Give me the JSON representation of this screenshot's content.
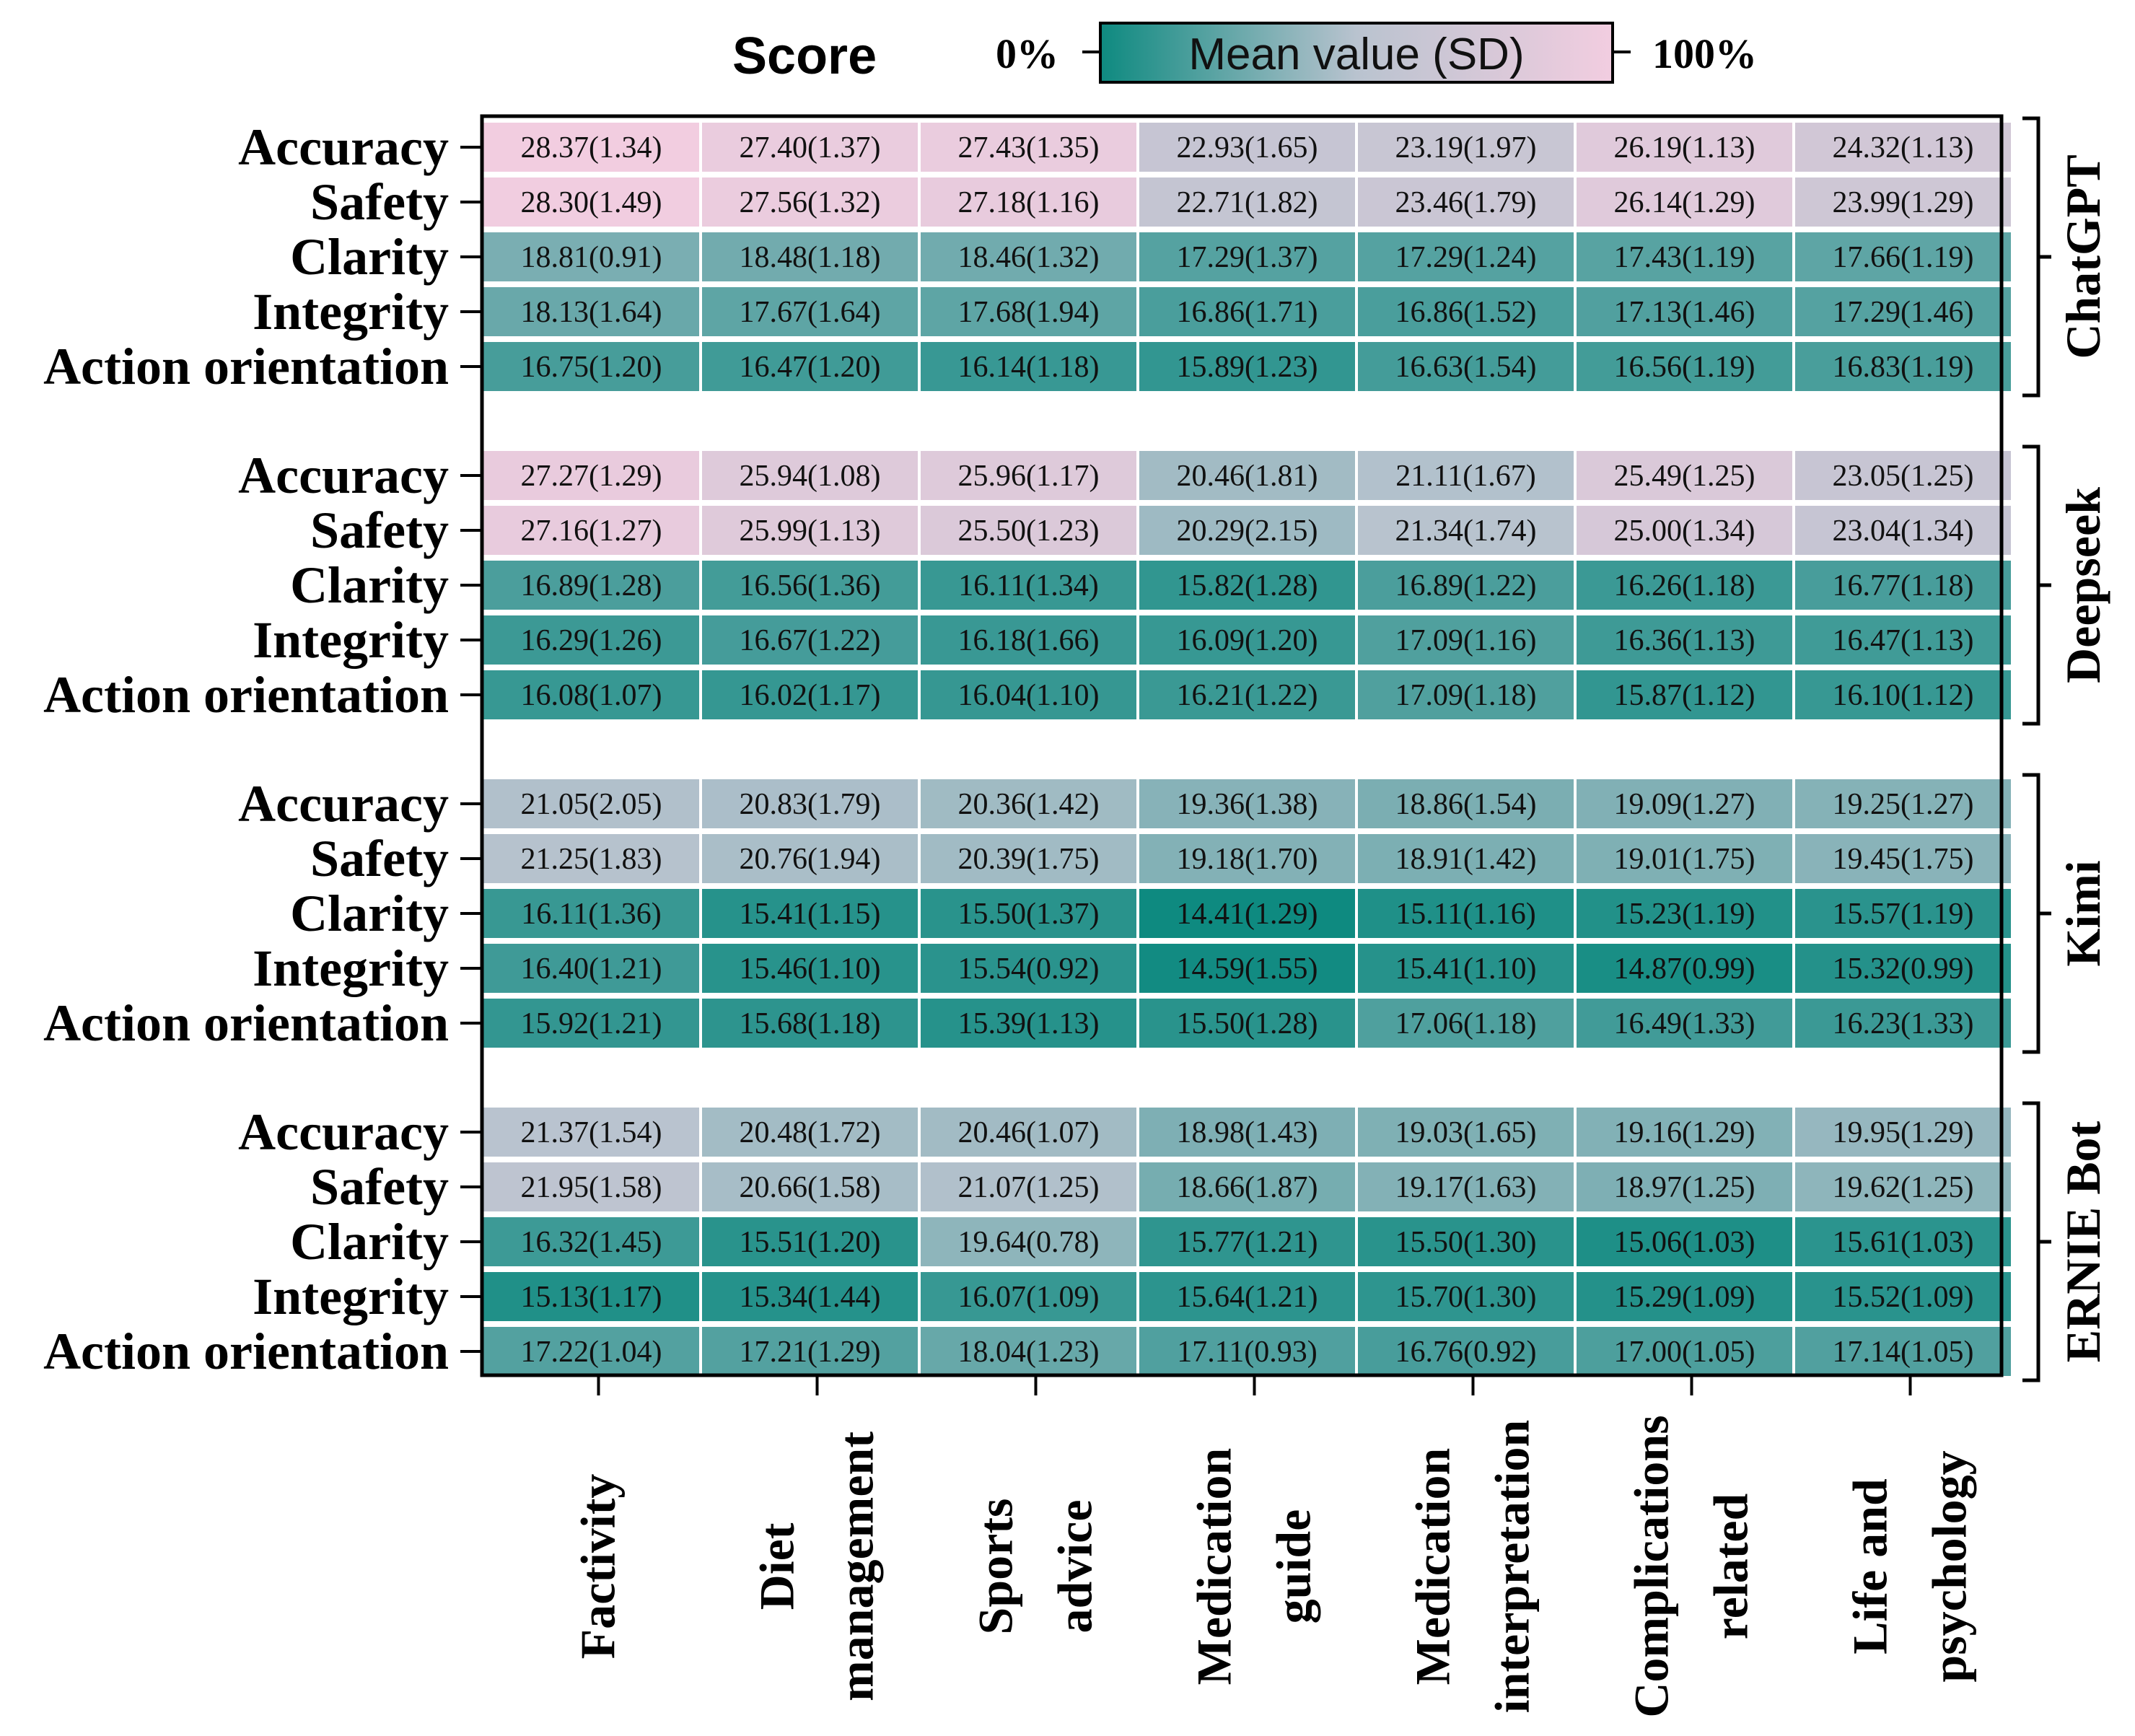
{
  "chart_data": {
    "type": "heatmap",
    "title": "Score",
    "colorbar": {
      "low_label": "0%",
      "high_label": "100%",
      "label": "Mean value (SD)",
      "low_color": "#0e8a80",
      "mid_color": "#b9c3cf",
      "high_color": "#f2cde0"
    },
    "columns": [
      [
        "Factivity"
      ],
      [
        "Diet",
        "management"
      ],
      [
        "Sports",
        "advice"
      ],
      [
        "Medication",
        "guide"
      ],
      [
        "Medication",
        "interpretation"
      ],
      [
        "Complications",
        "related"
      ],
      [
        "Life and",
        "psychology"
      ]
    ],
    "groups": [
      {
        "name": "ChatGPT",
        "rows": [
          {
            "label": "Accuracy",
            "cells": [
              "28.37(1.34)",
              "27.40(1.37)",
              "27.43(1.35)",
              "22.93(1.65)",
              "23.19(1.97)",
              "26.19(1.13)",
              "24.32(1.13)"
            ],
            "means": [
              28.37,
              27.4,
              27.43,
              22.93,
              23.19,
              26.19,
              24.32
            ]
          },
          {
            "label": "Safety",
            "cells": [
              "28.30(1.49)",
              "27.56(1.32)",
              "27.18(1.16)",
              "22.71(1.82)",
              "23.46(1.79)",
              "26.14(1.29)",
              "23.99(1.29)"
            ],
            "means": [
              28.3,
              27.56,
              27.18,
              22.71,
              23.46,
              26.14,
              23.99
            ]
          },
          {
            "label": "Clarity",
            "cells": [
              "18.81(0.91)",
              "18.48(1.18)",
              "18.46(1.32)",
              "17.29(1.37)",
              "17.29(1.24)",
              "17.43(1.19)",
              "17.66(1.19)"
            ],
            "means": [
              18.81,
              18.48,
              18.46,
              17.29,
              17.29,
              17.43,
              17.66
            ]
          },
          {
            "label": "Integrity",
            "cells": [
              "18.13(1.64)",
              "17.67(1.64)",
              "17.68(1.94)",
              "16.86(1.71)",
              "16.86(1.52)",
              "17.13(1.46)",
              "17.29(1.46)"
            ],
            "means": [
              18.13,
              17.67,
              17.68,
              16.86,
              16.86,
              17.13,
              17.29
            ]
          },
          {
            "label": "Action orientation",
            "cells": [
              "16.75(1.20)",
              "16.47(1.20)",
              "16.14(1.18)",
              "15.89(1.23)",
              "16.63(1.54)",
              "16.56(1.19)",
              "16.83(1.19)"
            ],
            "means": [
              16.75,
              16.47,
              16.14,
              15.89,
              16.63,
              16.56,
              16.83
            ]
          }
        ]
      },
      {
        "name": "Deepseek",
        "rows": [
          {
            "label": "Accuracy",
            "cells": [
              "27.27(1.29)",
              "25.94(1.08)",
              "25.96(1.17)",
              "20.46(1.81)",
              "21.11(1.67)",
              "25.49(1.25)",
              "23.05(1.25)"
            ],
            "means": [
              27.27,
              25.94,
              25.96,
              20.46,
              21.11,
              25.49,
              23.05
            ]
          },
          {
            "label": "Safety",
            "cells": [
              "27.16(1.27)",
              "25.99(1.13)",
              "25.50(1.23)",
              "20.29(2.15)",
              "21.34(1.74)",
              "25.00(1.34)",
              "23.04(1.34)"
            ],
            "means": [
              27.16,
              25.99,
              25.5,
              20.29,
              21.34,
              25.0,
              23.04
            ]
          },
          {
            "label": "Clarity",
            "cells": [
              "16.89(1.28)",
              "16.56(1.36)",
              "16.11(1.34)",
              "15.82(1.28)",
              "16.89(1.22)",
              "16.26(1.18)",
              "16.77(1.18)"
            ],
            "means": [
              16.89,
              16.56,
              16.11,
              15.82,
              16.89,
              16.26,
              16.77
            ]
          },
          {
            "label": "Integrity",
            "cells": [
              "16.29(1.26)",
              "16.67(1.22)",
              "16.18(1.66)",
              "16.09(1.20)",
              "17.09(1.16)",
              "16.36(1.13)",
              "16.47(1.13)"
            ],
            "means": [
              16.29,
              16.67,
              16.18,
              16.09,
              17.09,
              16.36,
              16.47
            ]
          },
          {
            "label": "Action orientation",
            "cells": [
              "16.08(1.07)",
              "16.02(1.17)",
              "16.04(1.10)",
              "16.21(1.22)",
              "17.09(1.18)",
              "15.87(1.12)",
              "16.10(1.12)"
            ],
            "means": [
              16.08,
              16.02,
              16.04,
              16.21,
              17.09,
              15.87,
              16.1
            ]
          }
        ]
      },
      {
        "name": "Kimi",
        "rows": [
          {
            "label": "Accuracy",
            "cells": [
              "21.05(2.05)",
              "20.83(1.79)",
              "20.36(1.42)",
              "19.36(1.38)",
              "18.86(1.54)",
              "19.09(1.27)",
              "19.25(1.27)"
            ],
            "means": [
              21.05,
              20.83,
              20.36,
              19.36,
              18.86,
              19.09,
              19.25
            ]
          },
          {
            "label": "Safety",
            "cells": [
              "21.25(1.83)",
              "20.76(1.94)",
              "20.39(1.75)",
              "19.18(1.70)",
              "18.91(1.42)",
              "19.01(1.75)",
              "19.45(1.75)"
            ],
            "means": [
              21.25,
              20.76,
              20.39,
              19.18,
              18.91,
              19.01,
              19.45
            ]
          },
          {
            "label": "Clarity",
            "cells": [
              "16.11(1.36)",
              "15.41(1.15)",
              "15.50(1.37)",
              "14.41(1.29)",
              "15.11(1.16)",
              "15.23(1.19)",
              "15.57(1.19)"
            ],
            "means": [
              16.11,
              15.41,
              15.5,
              14.41,
              15.11,
              15.23,
              15.57
            ]
          },
          {
            "label": "Integrity",
            "cells": [
              "16.40(1.21)",
              "15.46(1.10)",
              "15.54(0.92)",
              "14.59(1.55)",
              "15.41(1.10)",
              "14.87(0.99)",
              "15.32(0.99)"
            ],
            "means": [
              16.4,
              15.46,
              15.54,
              14.59,
              15.41,
              14.87,
              15.32
            ]
          },
          {
            "label": "Action orientation",
            "cells": [
              "15.92(1.21)",
              "15.68(1.18)",
              "15.39(1.13)",
              "15.50(1.28)",
              "17.06(1.18)",
              "16.49(1.33)",
              "16.23(1.33)"
            ],
            "means": [
              15.92,
              15.68,
              15.39,
              15.5,
              17.06,
              16.49,
              16.23
            ]
          }
        ]
      },
      {
        "name": "ERNIE Bot",
        "rows": [
          {
            "label": "Accuracy",
            "cells": [
              "21.37(1.54)",
              "20.48(1.72)",
              "20.46(1.07)",
              "18.98(1.43)",
              "19.03(1.65)",
              "19.16(1.29)",
              "19.95(1.29)"
            ],
            "means": [
              21.37,
              20.48,
              20.46,
              18.98,
              19.03,
              19.16,
              19.95
            ]
          },
          {
            "label": "Safety",
            "cells": [
              "21.95(1.58)",
              "20.66(1.58)",
              "21.07(1.25)",
              "18.66(1.87)",
              "19.17(1.63)",
              "18.97(1.25)",
              "19.62(1.25)"
            ],
            "means": [
              21.95,
              20.66,
              21.07,
              18.66,
              19.17,
              18.97,
              19.62
            ]
          },
          {
            "label": "Clarity",
            "cells": [
              "16.32(1.45)",
              "15.51(1.20)",
              "19.64(0.78)",
              "15.77(1.21)",
              "15.50(1.30)",
              "15.06(1.03)",
              "15.61(1.03)"
            ],
            "means": [
              16.32,
              15.51,
              19.64,
              15.77,
              15.5,
              15.06,
              15.61
            ]
          },
          {
            "label": "Integrity",
            "cells": [
              "15.13(1.17)",
              "15.34(1.44)",
              "16.07(1.09)",
              "15.64(1.21)",
              "15.70(1.30)",
              "15.29(1.09)",
              "15.52(1.09)"
            ],
            "means": [
              15.13,
              15.34,
              16.07,
              15.64,
              15.7,
              15.29,
              15.52
            ]
          },
          {
            "label": "Action orientation",
            "cells": [
              "17.22(1.04)",
              "17.21(1.29)",
              "18.04(1.23)",
              "17.11(0.93)",
              "16.76(0.92)",
              "17.00(1.05)",
              "17.14(1.05)"
            ],
            "means": [
              17.22,
              17.21,
              18.04,
              17.11,
              16.76,
              17.0,
              17.14
            ]
          }
        ]
      }
    ]
  }
}
